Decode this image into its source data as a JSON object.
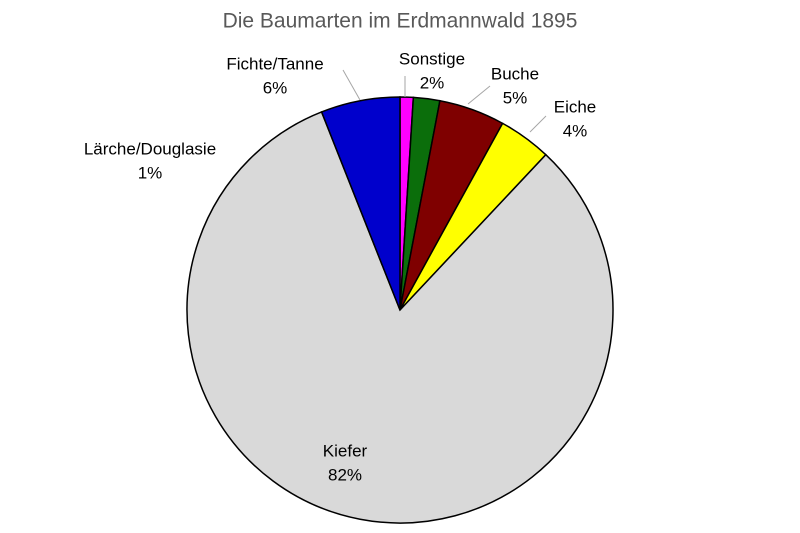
{
  "chart_data": {
    "type": "pie",
    "title": "Die Baumarten im Erdmannwald 1895",
    "categories": [
      "Lärche/Douglasie",
      "Sonstige",
      "Buche",
      "Eiche",
      "Kiefer",
      "Fichte/Tanne"
    ],
    "values": [
      1,
      2,
      5,
      4,
      82,
      6
    ],
    "value_labels": [
      "1%",
      "2%",
      "5%",
      "4%",
      "82%",
      "6%"
    ],
    "colors": [
      "#ff00ff",
      "#0b6e0b",
      "#7f0000",
      "#ffff00",
      "#d9d9d9",
      "#0000cc"
    ]
  }
}
